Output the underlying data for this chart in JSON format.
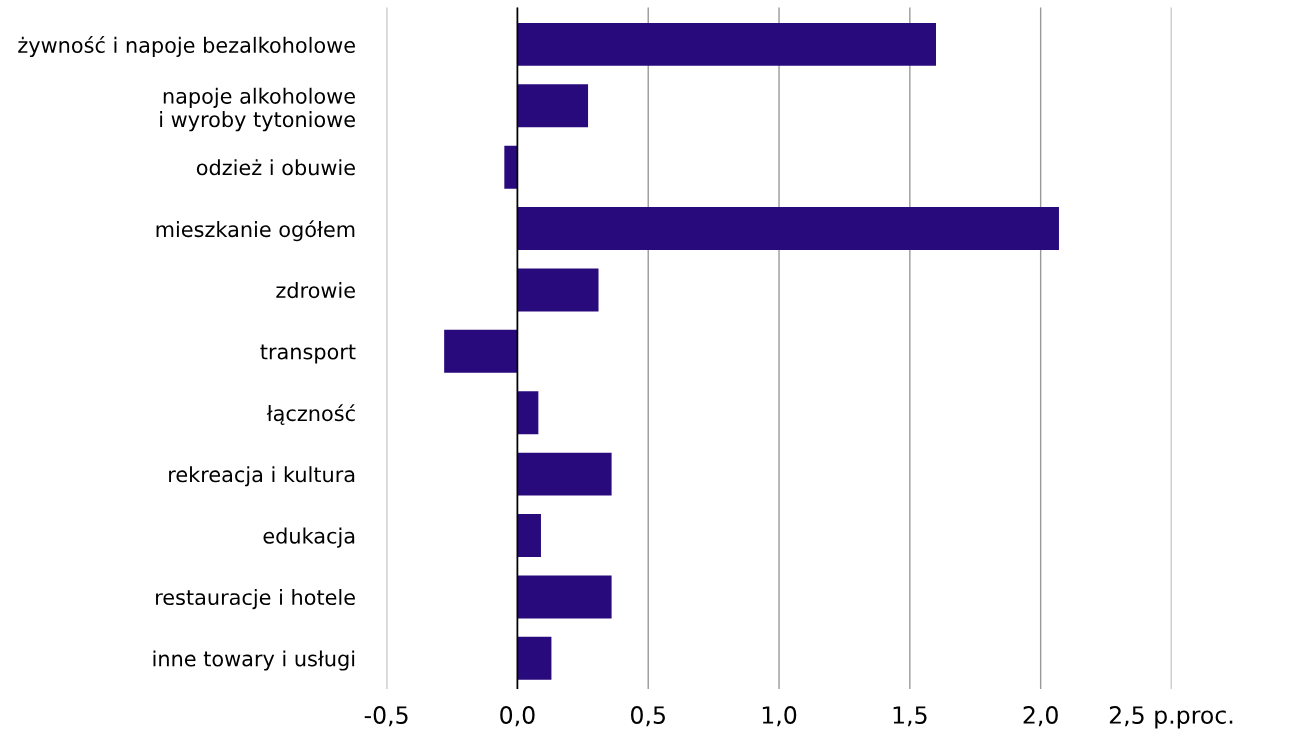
{
  "chart_data": {
    "type": "bar",
    "orientation": "horizontal",
    "categories": [
      "żywność i napoje bezalkoholowe",
      "napoje alkoholowe\ni wyroby tytoniowe",
      "odzież i obuwie",
      "mieszkanie ogółem",
      "zdrowie",
      "transport",
      "łączność",
      "rekreacja i kultura",
      "edukacja",
      "restauracje i hotele",
      "inne towary i usługi"
    ],
    "values": [
      1.6,
      0.27,
      -0.05,
      2.07,
      0.31,
      -0.28,
      0.08,
      0.36,
      0.09,
      0.36,
      0.13
    ],
    "color": "#280a7d",
    "xlim": [
      -0.5,
      2.5
    ],
    "xticks": [
      {
        "value": -0.5,
        "label": "-0,5"
      },
      {
        "value": 0,
        "label": "0,0"
      },
      {
        "value": 0.5,
        "label": "0,5"
      },
      {
        "value": 1.0,
        "label": "1,0"
      },
      {
        "value": 1.5,
        "label": "1,5"
      },
      {
        "value": 2.0,
        "label": "2,0"
      },
      {
        "value": 2.5,
        "label": "2,5 p.proc."
      }
    ],
    "grid": "x"
  }
}
